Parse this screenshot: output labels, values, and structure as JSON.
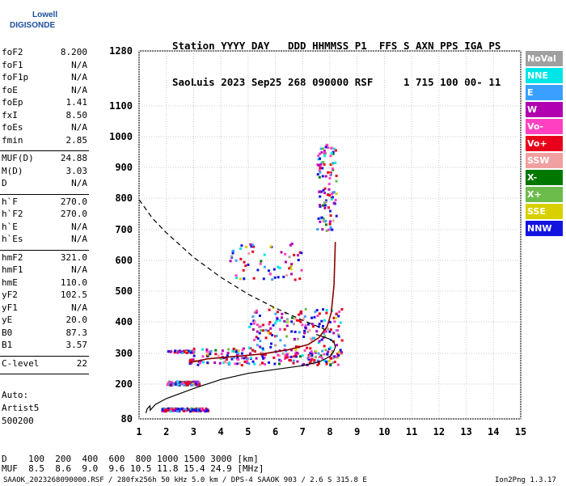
{
  "logo": {
    "line1": "Lowell",
    "line2": "DIGISONDE"
  },
  "header": {
    "line1": "Station YYYY DAY   DDD HHMMSS P1  FFS S AXN PPS IGA PS",
    "line2": "SaoLuis 2023 Sep25 268 090000 RSF     1 715 100 00- 11"
  },
  "params": [
    {
      "group": [
        {
          "name": "foF2",
          "value": "8.200"
        },
        {
          "name": "foF1",
          "value": "N/A"
        },
        {
          "name": "foF1p",
          "value": "N/A"
        },
        {
          "name": "foE",
          "value": "N/A"
        },
        {
          "name": "foEp",
          "value": "1.41"
        },
        {
          "name": "fxI",
          "value": "8.50"
        },
        {
          "name": "foEs",
          "value": "N/A"
        },
        {
          "name": "fmin",
          "value": "2.85"
        }
      ]
    },
    {
      "group": [
        {
          "name": "MUF(D)",
          "value": "24.88"
        },
        {
          "name": "M(D)",
          "value": "3.03"
        },
        {
          "name": "D",
          "value": "N/A"
        }
      ]
    },
    {
      "group": [
        {
          "name": "h`F",
          "value": "270.0"
        },
        {
          "name": "h`F2",
          "value": "270.0"
        },
        {
          "name": "h`E",
          "value": "N/A"
        },
        {
          "name": "h`Es",
          "value": "N/A"
        }
      ]
    },
    {
      "group": [
        {
          "name": "hmF2",
          "value": "321.0"
        },
        {
          "name": "hmF1",
          "value": "N/A"
        },
        {
          "name": "hmE",
          "value": "110.0"
        },
        {
          "name": "yF2",
          "value": "102.5"
        },
        {
          "name": "yF1",
          "value": "N/A"
        },
        {
          "name": "yE",
          "value": "20.0"
        },
        {
          "name": "B0",
          "value": "87.3"
        },
        {
          "name": "B1",
          "value": "3.57"
        }
      ]
    },
    {
      "group": [
        {
          "name": "C-level",
          "value": "22"
        }
      ]
    }
  ],
  "auto": {
    "l1": "Auto:",
    "l2": "Artist5",
    "l3": "500200"
  },
  "legend": [
    {
      "label": "NoVal",
      "color": "#a0a0a0"
    },
    {
      "label": "NNE",
      "color": "#00e5e5"
    },
    {
      "label": "E",
      "color": "#3aa0ff"
    },
    {
      "label": "W",
      "color": "#b000b0"
    },
    {
      "label": "Vo-",
      "color": "#ff40c0"
    },
    {
      "label": "Vo+",
      "color": "#e8001a"
    },
    {
      "label": "SSW",
      "color": "#f0a0a0"
    },
    {
      "label": "X-",
      "color": "#007800"
    },
    {
      "label": "X+",
      "color": "#6cbc4c"
    },
    {
      "label": "SSE",
      "color": "#d8d000"
    },
    {
      "label": "NNW",
      "color": "#1414e0"
    }
  ],
  "table": {
    "d_row": "D    100  200  400  600  800 1000 1500 3000 [km]",
    "muf_row": "MUF  8.5  8.6  9.0  9.6 10.5 11.8 15.4 24.9 [MHz]"
  },
  "footer": "SAAOK_2023268090000.RSF / 280fx256h 50 kHz 5.0 km / DPS-4 SAAOK 903 / 2.6 S 315.8 E",
  "version": "Ion2Png 1.3.17",
  "chart_data": {
    "type": "scatter",
    "x_ticks": [
      1,
      2,
      3,
      4,
      5,
      6,
      7,
      8,
      9,
      10,
      11,
      12,
      13,
      14,
      15
    ],
    "y_ticks": [
      80,
      200,
      300,
      400,
      500,
      600,
      700,
      800,
      900,
      1000,
      1100,
      1280
    ],
    "xlim": [
      1,
      15
    ],
    "ylim": [
      80,
      1280
    ],
    "grid": true,
    "virtual_height_trace": {
      "x": [
        2.85,
        3.5,
        4.5,
        5.5,
        6.5,
        7.2,
        7.6,
        7.9,
        8.05,
        8.15,
        8.2
      ],
      "y": [
        270,
        282,
        290,
        298,
        312,
        328,
        350,
        385,
        430,
        520,
        660
      ]
    },
    "true_height_profile": {
      "x": [
        1.25,
        1.3,
        1.4,
        1.41,
        1.6,
        2.0,
        3.0,
        4.0,
        5.0,
        6.0,
        7.0,
        7.6,
        8.0,
        8.15,
        8.2,
        8.15,
        8.0,
        7.5
      ],
      "y": [
        100,
        115,
        125,
        110,
        130,
        150,
        185,
        215,
        235,
        248,
        260,
        272,
        290,
        308,
        321,
        335,
        345,
        360
      ]
    },
    "muf_curve": {
      "x": [
        1.0,
        1.5,
        2.0,
        2.5,
        3.0,
        4.0,
        5.0,
        6.0,
        7.0,
        8.0
      ],
      "y": [
        795,
        735,
        690,
        650,
        610,
        545,
        490,
        445,
        405,
        370
      ]
    },
    "echo_clusters": [
      {
        "x": [
          2.8,
          8.4
        ],
        "y": [
          265,
          320
        ],
        "density": 1.0
      },
      {
        "x": [
          5.0,
          8.5
        ],
        "y": [
          320,
          450
        ],
        "density": 0.7
      },
      {
        "x": [
          4.3,
          7.0
        ],
        "y": [
          540,
          660
        ],
        "density": 0.3
      },
      {
        "x": [
          7.5,
          8.2
        ],
        "y": [
          700,
          980
        ],
        "density": 0.5
      },
      {
        "x": [
          2.0,
          3.2
        ],
        "y": [
          200,
          212
        ],
        "density": 0.6
      },
      {
        "x": [
          1.8,
          3.5
        ],
        "y": [
          110,
          120
        ],
        "density": 0.6
      },
      {
        "x": [
          2.0,
          3.0
        ],
        "y": [
          305,
          312
        ],
        "density": 0.3
      }
    ]
  }
}
